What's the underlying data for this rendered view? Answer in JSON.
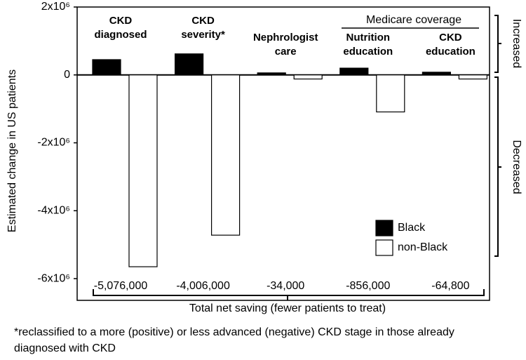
{
  "chart_data": {
    "type": "bar",
    "y_label": "Estimated change in US patients",
    "categories": [
      "CKD diagnosed",
      "CKD severity*",
      "Nephrologist care",
      "Nutrition education",
      "CKD education"
    ],
    "group_label": "Medicare coverage",
    "series": [
      {
        "name": "Black",
        "color": "#000000",
        "values": [
          450000,
          620000,
          60000,
          200000,
          80000
        ]
      },
      {
        "name": "non-Black",
        "color": "#ffffff",
        "values": [
          -5650000,
          -4720000,
          -120000,
          -1090000,
          -120000
        ]
      }
    ],
    "ylim": [
      -6640000,
      2000000
    ],
    "yticks": [
      {
        "value": 2000000,
        "label": "2x10⁶"
      },
      0,
      {
        "value": -2000000,
        "label": "-2x10⁶"
      },
      {
        "value": -4000000,
        "label": "-4x10⁶"
      },
      {
        "value": -6000000,
        "label": "-6x10⁶"
      }
    ],
    "side_labels": [
      "Increased",
      "Decreased"
    ],
    "net_saving": {
      "label": "Total net saving (fewer patients to treat)",
      "values": [
        -5076000,
        -4006000,
        -34000,
        -856000,
        -64800
      ],
      "value_labels": [
        "-5,076,000",
        "-4,006,000",
        "-34,000",
        "-856,000",
        "-64,800"
      ]
    },
    "footnote": "*reclassified to a more (positive) or less advanced (negative) CKD stage in those already diagnosed with CKD"
  }
}
